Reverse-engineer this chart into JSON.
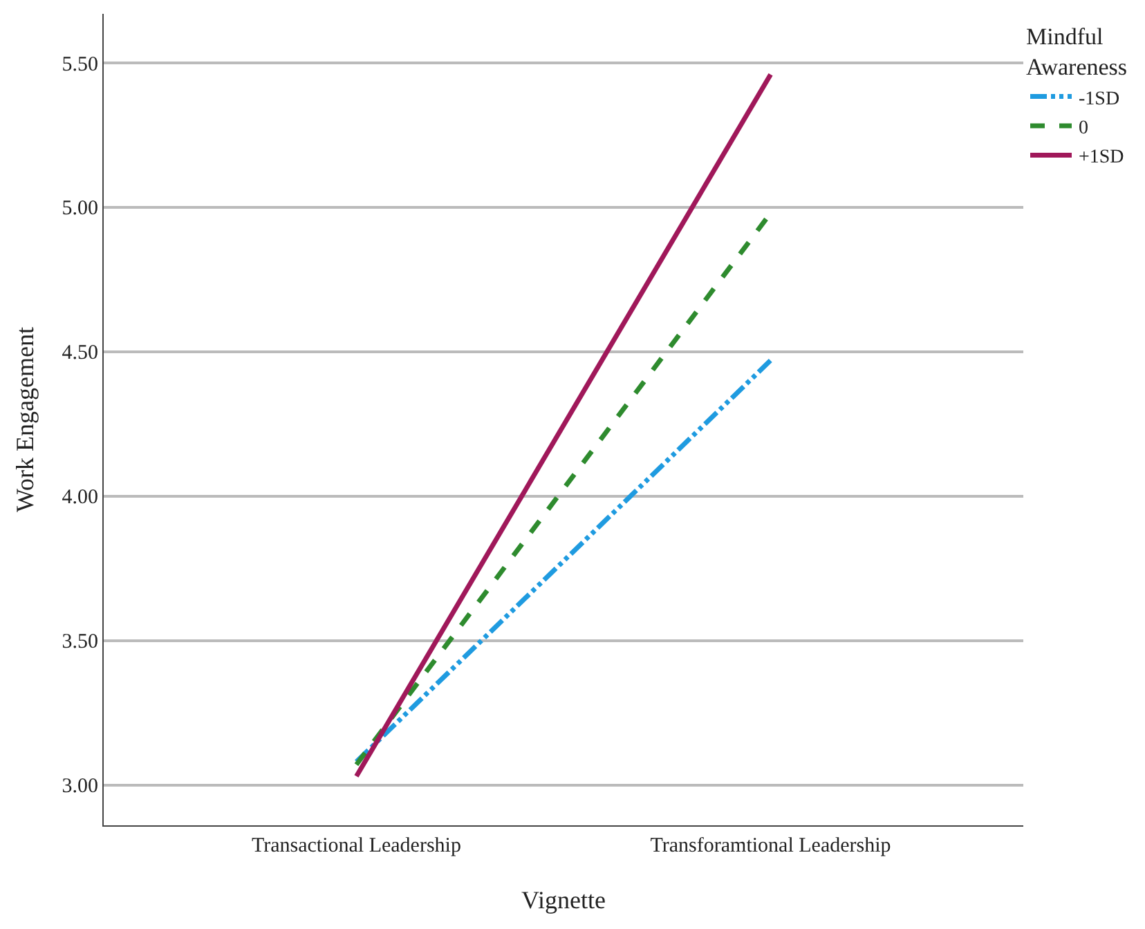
{
  "chart_data": {
    "type": "line",
    "xlabel": "Vignette",
    "ylabel": "Work Engagement",
    "legend_title": "Mindful Awareness",
    "categories": [
      "Transactional Leadership",
      "Transforamtional Leadership"
    ],
    "series": [
      {
        "name": "-1SD",
        "color": "#1f9be0",
        "line_style": "dashdotdot",
        "values": [
          3.08,
          4.47
        ]
      },
      {
        "name": "0",
        "color": "#2e8b2e",
        "line_style": "dashed",
        "values": [
          3.07,
          4.98
        ]
      },
      {
        "name": "+1SD",
        "color": "#a0185a",
        "line_style": "solid",
        "values": [
          3.03,
          5.46
        ]
      }
    ],
    "ylim": [
      2.86,
      5.67
    ],
    "yticks": [
      {
        "value": 3,
        "label": "3.00"
      },
      {
        "value": 3.5,
        "label": "3.50"
      },
      {
        "value": 4,
        "label": "4.00"
      },
      {
        "value": 4.5,
        "label": "4.50"
      },
      {
        "value": 5,
        "label": "5.00"
      },
      {
        "value": 5.5,
        "label": "5.50"
      }
    ],
    "grid": "y",
    "legend": "top right",
    "marker": "none"
  }
}
